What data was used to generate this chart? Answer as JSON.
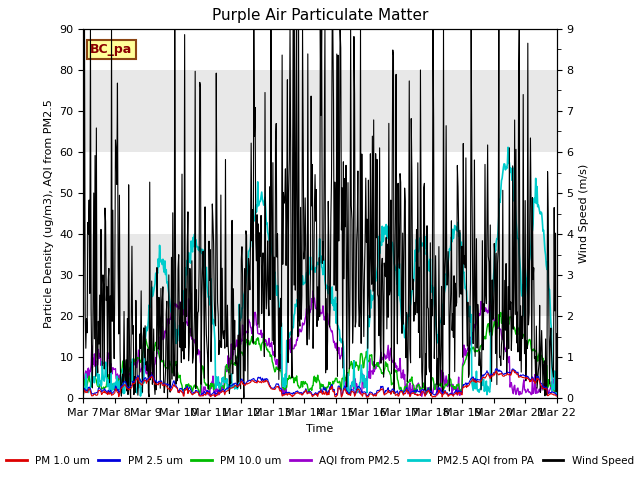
{
  "title": "Purple Air Particulate Matter",
  "xlabel": "Time",
  "ylabel_left": "Particle Density (ug/m3), AQI from PM2.5",
  "ylabel_right": "Wind Speed (m/s)",
  "annotation_text": "BC_pa",
  "annotation_color": "#8B0000",
  "annotation_bg": "#FFFF99",
  "annotation_border": "#8B4513",
  "ylim_left": [
    0,
    90
  ],
  "ylim_right": [
    0.0,
    9.0
  ],
  "yticks_left": [
    0,
    10,
    20,
    30,
    40,
    50,
    60,
    70,
    80,
    90
  ],
  "yticks_right": [
    0.0,
    1.0,
    2.0,
    3.0,
    4.0,
    5.0,
    6.0,
    7.0,
    8.0,
    9.0
  ],
  "xtick_labels": [
    "Mar 7",
    "Mar 8",
    "Mar 9",
    "Mar 10",
    "Mar 11",
    "Mar 12",
    "Mar 13",
    "Mar 14",
    "Mar 15",
    "Mar 16",
    "Mar 17",
    "Mar 18",
    "Mar 19",
    "Mar 20",
    "Mar 21",
    "Mar 22"
  ],
  "n_points": 720,
  "colors": {
    "pm1": "#DD0000",
    "pm25": "#0000DD",
    "pm10": "#00BB00",
    "aqi_pm25": "#9900CC",
    "aqi_pa": "#00CCCC",
    "wind": "#000000"
  },
  "line_widths": {
    "pm1": 0.8,
    "pm25": 0.8,
    "pm10": 1.0,
    "aqi_pm25": 1.0,
    "aqi_pa": 1.2,
    "wind": 0.8
  },
  "legend_labels": [
    "PM 1.0 um",
    "PM 2.5 um",
    "PM 10.0 um",
    "AQI from PM2.5",
    "PM2.5 AQI from PA",
    "Wind Speed"
  ],
  "bg_bands": [
    [
      0,
      20,
      "#ffffff"
    ],
    [
      20,
      40,
      "#e8e8e8"
    ],
    [
      40,
      60,
      "#ffffff"
    ],
    [
      60,
      80,
      "#e8e8e8"
    ],
    [
      80,
      90,
      "#ffffff"
    ]
  ],
  "title_fontsize": 11,
  "axis_fontsize": 8,
  "tick_fontsize": 8
}
